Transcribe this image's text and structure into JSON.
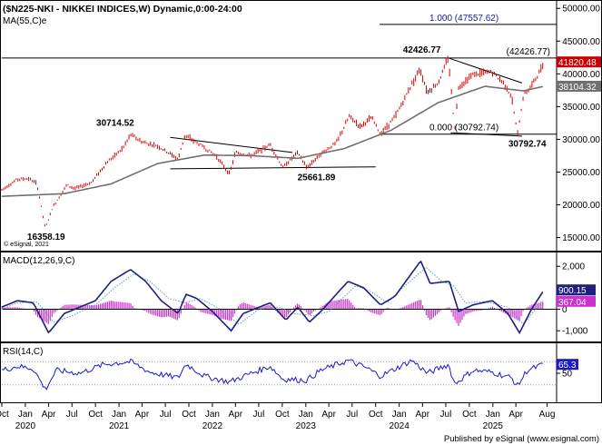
{
  "header": {
    "title": "($N225-NKI - NIKKEI INDICES,W) Dynamic,0:00-24:00",
    "ma_label": "MA(55,C)e"
  },
  "footer": {
    "text": "Published by eSignal (www.esignal.com)"
  },
  "chart_data": [
    {
      "type": "line",
      "panel": "price",
      "watermark": "© eSignal, 2021",
      "y_ticks": [
        15000,
        20000,
        25000,
        30000,
        35000,
        40000,
        45000,
        50000
      ],
      "y_tick_labels": [
        "15000.00",
        "20000.00",
        "25000.00",
        "30000.00",
        "35000.00",
        "40000.00",
        "45000.00",
        "50000.00"
      ],
      "ylim": [
        13000,
        51000
      ],
      "series": [
        {
          "role": "price",
          "style": "ohlc-bars",
          "color": "#cc0000",
          "anchors": [
            [
              "2019-10-01",
              22300
            ],
            [
              "2019-12-01",
              23900
            ],
            [
              "2020-01-15",
              24000
            ],
            [
              "2020-02-15",
              23200
            ],
            [
              "2020-03-19",
              16358
            ],
            [
              "2020-04-15",
              19500
            ],
            [
              "2020-06-10",
              23000
            ],
            [
              "2020-07-15",
              22500
            ],
            [
              "2020-09-15",
              23400
            ],
            [
              "2020-11-15",
              26500
            ],
            [
              "2021-01-15",
              28600
            ],
            [
              "2021-02-16",
              30714
            ],
            [
              "2021-04-01",
              29600
            ],
            [
              "2021-06-01",
              29000
            ],
            [
              "2021-08-20",
              27000
            ],
            [
              "2021-09-15",
              30600
            ],
            [
              "2021-11-01",
              29500
            ],
            [
              "2022-01-15",
              27500
            ],
            [
              "2022-03-09",
              24700
            ],
            [
              "2022-04-01",
              28000
            ],
            [
              "2022-06-01",
              27500
            ],
            [
              "2022-08-15",
              29200
            ],
            [
              "2022-10-03",
              25700
            ],
            [
              "2022-12-01",
              28000
            ],
            [
              "2023-01-04",
              25661
            ],
            [
              "2023-03-01",
              27800
            ],
            [
              "2023-05-01",
              29500
            ],
            [
              "2023-06-20",
              33500
            ],
            [
              "2023-08-01",
              32000
            ],
            [
              "2023-09-15",
              33300
            ],
            [
              "2023-10-20",
              30800
            ],
            [
              "2023-12-15",
              33400
            ],
            [
              "2024-01-15",
              35700
            ],
            [
              "2024-02-20",
              38500
            ],
            [
              "2024-03-22",
              40800
            ],
            [
              "2024-04-20",
              37200
            ],
            [
              "2024-06-01",
              38600
            ],
            [
              "2024-07-11",
              42426
            ],
            [
              "2024-08-05",
              31500
            ],
            [
              "2024-08-20",
              38000
            ],
            [
              "2024-10-15",
              39900
            ],
            [
              "2024-12-27",
              40300
            ],
            [
              "2025-02-15",
              38500
            ],
            [
              "2025-03-15",
              36500
            ],
            [
              "2025-04-07",
              30792
            ],
            [
              "2025-05-01",
              36800
            ],
            [
              "2025-06-01",
              38200
            ],
            [
              "2025-07-01",
              40200
            ],
            [
              "2025-07-20",
              41820
            ]
          ]
        },
        {
          "role": "moving-average",
          "name": "MA(55,C)e",
          "color": "#707070",
          "anchors": [
            [
              "2019-10-01",
              21300
            ],
            [
              "2020-06-01",
              21700
            ],
            [
              "2020-12-01",
              23200
            ],
            [
              "2021-06-01",
              26300
            ],
            [
              "2021-12-01",
              27600
            ],
            [
              "2022-06-01",
              27500
            ],
            [
              "2022-12-01",
              27100
            ],
            [
              "2023-06-01",
              28600
            ],
            [
              "2023-12-01",
              31400
            ],
            [
              "2024-06-01",
              35600
            ],
            [
              "2024-12-01",
              38100
            ],
            [
              "2025-05-01",
              37400
            ],
            [
              "2025-07-20",
              38104
            ]
          ]
        }
      ],
      "value_badges": [
        {
          "text": "41820.48",
          "value": 41820.48,
          "bg": "#cc0000",
          "fg": "#ffffff"
        },
        {
          "text": "38104.32",
          "value": 38104.32,
          "bg": "#707070",
          "fg": "#ffffff"
        }
      ],
      "horizontal_lines": [
        {
          "value": 47557.62,
          "label": "1.000 (47557.62)",
          "color": "#000000",
          "label_color": "#1a1aa0"
        },
        {
          "value": 42426.77,
          "label": "(42426.77)",
          "color": "#000000",
          "label_color": "#000000"
        },
        {
          "value": 30792.74,
          "label": "0.000 (30792.74)",
          "color": "#000000",
          "label_color": "#000000"
        }
      ],
      "trendlines": [
        {
          "from": [
            "2021-07-20",
            30300
          ],
          "to": [
            "2022-11-10",
            28000
          ]
        },
        {
          "from": [
            "2021-07-20",
            25500
          ],
          "to": [
            "2023-10-01",
            25800
          ]
        },
        {
          "from": [
            "2024-07-11",
            42426
          ],
          "to": [
            "2025-04-25",
            38600
          ]
        },
        {
          "from": [
            "2024-07-20",
            31000
          ],
          "to": [
            "2025-04-25",
            30500
          ]
        }
      ],
      "annotations": [
        {
          "text": "16358.19",
          "x": "2020-03-19",
          "y": 16358
        },
        {
          "text": "30714.52",
          "x": "2021-02-16",
          "y": 30714
        },
        {
          "text": "25661.89",
          "x": "2023-01-04",
          "y": 25661
        },
        {
          "text": "42426.77",
          "x": "2024-07-11",
          "y": 42426
        },
        {
          "text": "30792.74",
          "x": "2025-04-07",
          "y": 30792
        }
      ]
    },
    {
      "type": "line",
      "panel": "macd",
      "title": "MACD(12,26,9,C)",
      "y_ticks": [
        -1000,
        0,
        1000,
        2000
      ],
      "y_tick_labels": [
        "-1,000",
        "0",
        "1,000",
        "2,000"
      ],
      "ylim": [
        -1500,
        2600
      ],
      "series": [
        {
          "role": "macd",
          "color": "#1f1f80",
          "anchors": [
            [
              "2019-10-01",
              100
            ],
            [
              "2019-12-01",
              400
            ],
            [
              "2020-02-01",
              300
            ],
            [
              "2020-04-01",
              -1100
            ],
            [
              "2020-06-01",
              -200
            ],
            [
              "2020-08-01",
              100
            ],
            [
              "2020-10-01",
              400
            ],
            [
              "2020-12-01",
              1300
            ],
            [
              "2021-02-15",
              1850
            ],
            [
              "2021-04-15",
              1300
            ],
            [
              "2021-06-15",
              400
            ],
            [
              "2021-08-20",
              -200
            ],
            [
              "2021-09-20",
              700
            ],
            [
              "2021-11-01",
              500
            ],
            [
              "2022-01-01",
              -100
            ],
            [
              "2022-03-15",
              -1000
            ],
            [
              "2022-05-01",
              -200
            ],
            [
              "2022-08-15",
              300
            ],
            [
              "2022-10-15",
              -500
            ],
            [
              "2022-12-01",
              100
            ],
            [
              "2023-01-15",
              -600
            ],
            [
              "2023-03-01",
              -100
            ],
            [
              "2023-06-15",
              1300
            ],
            [
              "2023-08-15",
              1000
            ],
            [
              "2023-10-20",
              200
            ],
            [
              "2023-12-15",
              600
            ],
            [
              "2024-03-25",
              2250
            ],
            [
              "2024-05-01",
              1200
            ],
            [
              "2024-07-15",
              1300
            ],
            [
              "2024-08-20",
              -100
            ],
            [
              "2024-10-15",
              200
            ],
            [
              "2024-12-30",
              400
            ],
            [
              "2025-03-01",
              -200
            ],
            [
              "2025-04-15",
              -1100
            ],
            [
              "2025-06-01",
              0
            ],
            [
              "2025-07-20",
              900
            ]
          ]
        },
        {
          "role": "signal",
          "color": "#5aa0c8",
          "anchors": [
            [
              "2019-10-01",
              0
            ],
            [
              "2019-12-01",
              300
            ],
            [
              "2020-02-15",
              350
            ],
            [
              "2020-04-20",
              -600
            ],
            [
              "2020-07-01",
              -300
            ],
            [
              "2020-10-01",
              200
            ],
            [
              "2020-12-15",
              1000
            ],
            [
              "2021-03-01",
              1650
            ],
            [
              "2021-05-01",
              1300
            ],
            [
              "2021-07-15",
              500
            ],
            [
              "2021-09-15",
              300
            ],
            [
              "2021-11-15",
              500
            ],
            [
              "2022-02-01",
              0
            ],
            [
              "2022-04-15",
              -700
            ],
            [
              "2022-07-01",
              0
            ],
            [
              "2022-09-15",
              100
            ],
            [
              "2022-11-15",
              -200
            ],
            [
              "2023-02-01",
              -300
            ],
            [
              "2023-04-01",
              -100
            ],
            [
              "2023-07-15",
              1100
            ],
            [
              "2023-09-15",
              800
            ],
            [
              "2023-11-15",
              300
            ],
            [
              "2024-01-15",
              1000
            ],
            [
              "2024-04-15",
              1950
            ],
            [
              "2024-06-15",
              1300
            ],
            [
              "2024-08-01",
              1100
            ],
            [
              "2024-09-15",
              300
            ],
            [
              "2024-12-01",
              350
            ],
            [
              "2025-03-01",
              100
            ],
            [
              "2025-05-01",
              -700
            ],
            [
              "2025-07-20",
              500
            ]
          ]
        }
      ],
      "histogram": {
        "color": "#cc33cc",
        "anchors_from": "macd_minus_signal"
      },
      "value_badges": [
        {
          "text": "900.15",
          "value": 900.15,
          "bg": "#1f1f80",
          "fg": "#ffffff"
        },
        {
          "text": "367.04",
          "value": 367.04,
          "bg": "#cc33cc",
          "fg": "#ffffff"
        }
      ],
      "zero_line": true
    },
    {
      "type": "line",
      "panel": "rsi",
      "title": "RSI(14,C)",
      "y_ticks": [
        50
      ],
      "y_tick_labels": [
        "50"
      ],
      "ylim": [
        0,
        100
      ],
      "reference_lines": [
        70,
        30
      ],
      "series": [
        {
          "role": "rsi",
          "color": "#1a1acc",
          "anchors": [
            [
              "2019-10-01",
              55
            ],
            [
              "2019-12-01",
              62
            ],
            [
              "2020-02-01",
              58
            ],
            [
              "2020-03-19",
              22
            ],
            [
              "2020-05-01",
              55
            ],
            [
              "2020-08-01",
              50
            ],
            [
              "2020-11-01",
              65
            ],
            [
              "2021-02-15",
              70
            ],
            [
              "2021-05-01",
              52
            ],
            [
              "2021-08-20",
              42
            ],
            [
              "2021-09-20",
              66
            ],
            [
              "2021-12-01",
              45
            ],
            [
              "2022-03-09",
              35
            ],
            [
              "2022-06-01",
              50
            ],
            [
              "2022-08-15",
              62
            ],
            [
              "2022-10-03",
              40
            ],
            [
              "2023-01-04",
              38
            ],
            [
              "2023-03-01",
              55
            ],
            [
              "2023-06-15",
              72
            ],
            [
              "2023-09-01",
              58
            ],
            [
              "2023-10-20",
              45
            ],
            [
              "2024-02-20",
              72
            ],
            [
              "2024-04-20",
              50
            ],
            [
              "2024-07-11",
              65
            ],
            [
              "2024-08-05",
              32
            ],
            [
              "2024-10-15",
              55
            ],
            [
              "2024-12-27",
              52
            ],
            [
              "2025-03-15",
              42
            ],
            [
              "2025-04-07",
              28
            ],
            [
              "2025-05-15",
              55
            ],
            [
              "2025-07-20",
              65.3
            ]
          ]
        }
      ],
      "value_badges": [
        {
          "text": "65.3",
          "value": 65.3,
          "bg": "#1a1acc",
          "fg": "#ffffff"
        }
      ]
    }
  ],
  "x_axis": {
    "start": "2019-10-01",
    "end": "2025-08-31",
    "month_ticks": [
      {
        "date": "2019-10-01",
        "label": "Oct"
      },
      {
        "date": "2020-01-01",
        "label": "Jan"
      },
      {
        "date": "2020-04-01",
        "label": "Apr"
      },
      {
        "date": "2020-07-01",
        "label": "Jul"
      },
      {
        "date": "2020-10-01",
        "label": "Oct"
      },
      {
        "date": "2021-01-01",
        "label": "Jan"
      },
      {
        "date": "2021-04-01",
        "label": "Apr"
      },
      {
        "date": "2021-07-01",
        "label": "Jul"
      },
      {
        "date": "2021-10-01",
        "label": "Oct"
      },
      {
        "date": "2022-01-01",
        "label": "Jan"
      },
      {
        "date": "2022-04-01",
        "label": "Apr"
      },
      {
        "date": "2022-07-01",
        "label": "Jul"
      },
      {
        "date": "2022-10-01",
        "label": "Oct"
      },
      {
        "date": "2023-01-01",
        "label": "Jan"
      },
      {
        "date": "2023-04-01",
        "label": "Apr"
      },
      {
        "date": "2023-07-01",
        "label": "Jul"
      },
      {
        "date": "2023-10-01",
        "label": "Oct"
      },
      {
        "date": "2024-01-01",
        "label": "Jan"
      },
      {
        "date": "2024-04-01",
        "label": "Apr"
      },
      {
        "date": "2024-07-01",
        "label": "Jul"
      },
      {
        "date": "2024-10-01",
        "label": "Oct"
      },
      {
        "date": "2025-01-01",
        "label": "Jan"
      },
      {
        "date": "2025-04-01",
        "label": "Apr"
      },
      {
        "date": "2025-08-01",
        "label": "Aug"
      }
    ],
    "year_labels": [
      {
        "date": "2020-01-01",
        "label": "2020"
      },
      {
        "date": "2021-01-01",
        "label": "2021"
      },
      {
        "date": "2022-01-01",
        "label": "2022"
      },
      {
        "date": "2023-01-01",
        "label": "2023"
      },
      {
        "date": "2024-01-01",
        "label": "2024"
      },
      {
        "date": "2025-01-01",
        "label": "2025"
      }
    ]
  }
}
